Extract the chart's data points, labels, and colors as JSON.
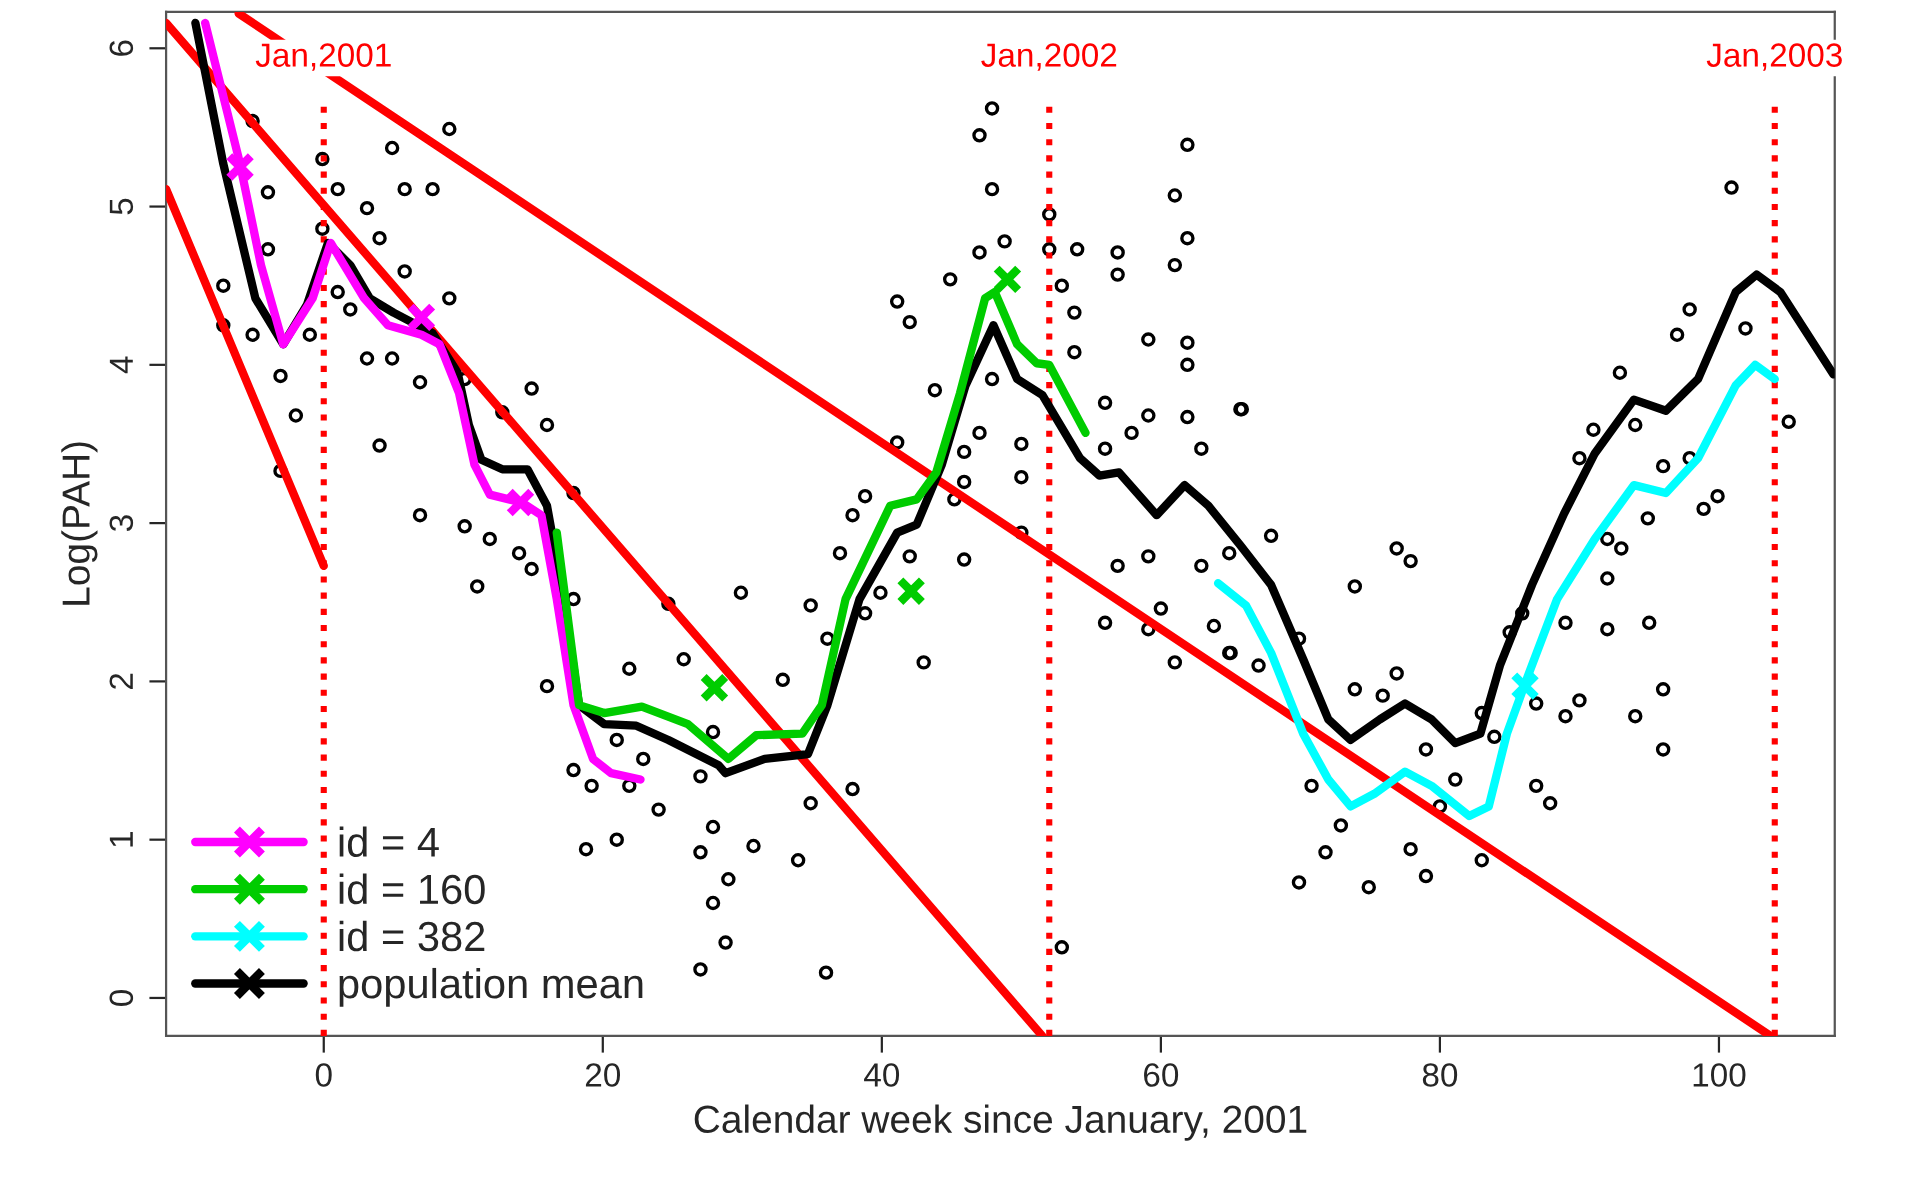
{
  "chart_data": {
    "type": "scatter",
    "xlabel": "Calendar week since January, 2001",
    "ylabel": "Log(PAH)",
    "xlim": [
      -11.3,
      108.3
    ],
    "ylim": [
      -0.24,
      6.23
    ],
    "xticks": [
      0,
      20,
      40,
      60,
      80,
      {
        "value": 100,
        "label": "100"
      }
    ],
    "yticks": [
      0,
      1,
      2,
      3,
      4,
      5,
      6
    ],
    "grid": false,
    "legend": "bottom left",
    "ref_lines": [
      {
        "axis": "x",
        "value": 0,
        "label": "Jan,2001",
        "color": "#ff0000",
        "line_style": "dotted"
      },
      {
        "axis": "x",
        "value": 52,
        "label": "Jan,2002",
        "color": "#ff0000",
        "line_style": "dotted"
      },
      {
        "axis": "x",
        "value": 104,
        "label": "Jan,2003",
        "color": "#ff0000",
        "line_style": "dotted"
      }
    ],
    "series": [
      {
        "color": "#000000",
        "marker": "circle",
        "x": [
          -5.1,
          -7.2,
          -7.2,
          -5.1,
          -4.0,
          -4.0,
          -3.1,
          -2.0,
          -3.1,
          -1.0,
          -0.1,
          -0.1,
          1.0,
          1.0,
          1.9,
          3.1,
          4.0,
          4.9,
          5.8,
          5.8,
          6.9,
          6.9,
          4.0,
          7.8,
          9.0,
          9.0,
          3.1,
          4.9,
          10.1,
          12.8,
          14.9,
          16.0,
          17.9,
          10.1,
          11.9,
          14.0,
          14.9,
          11.0,
          16.0,
          17.9,
          21.9,
          24.7,
          25.8,
          21.0,
          22.9,
          19.2,
          21.9,
          17.9,
          18.8,
          21.0,
          24.0,
          27.0,
          27.9,
          27.9,
          28.8,
          27.0,
          27.9,
          29.0,
          27.0,
          29.9,
          30.8,
          32.9,
          34.0,
          34.9,
          34.9,
          36.0,
          36.1,
          37.0,
          37.9,
          37.9,
          38.8,
          39.9,
          38.8,
          41.1,
          41.1,
          42.0,
          42.0,
          43.0,
          43.8,
          44.9,
          45.2,
          45.9,
          45.9,
          45.9,
          47.0,
          47.0,
          47.0,
          47.9,
          47.9,
          47.9,
          48.8,
          50.0,
          50.0,
          50.0,
          52.0,
          52.0,
          52.9,
          52.9,
          53.8,
          54.0,
          53.8,
          56.0,
          56.0,
          56.0,
          56.9,
          56.9,
          56.9,
          57.9,
          59.1,
          59.1,
          59.1,
          59.1,
          60.0,
          61.0,
          61.0,
          61.0,
          61.9,
          61.9,
          61.9,
          61.9,
          61.9,
          62.9,
          63.8,
          65.0,
          65.7,
          62.9,
          64.9,
          64.9,
          65.8,
          67.9,
          67.0,
          69.9,
          69.9,
          70.8,
          71.8,
          72.9,
          73.9,
          73.9,
          74.9,
          75.9,
          76.9,
          77.9,
          76.9,
          77.9,
          79.0,
          79.0,
          80.0,
          81.1,
          83.0,
          83.0,
          83.9,
          85.0,
          85.9,
          86.9,
          86.9,
          87.9,
          89.0,
          89.0,
          90.0,
          90.0,
          91.0,
          92.0,
          92.0,
          92.0,
          92.9,
          93.0,
          94.0,
          94.0,
          94.9,
          95.0,
          96.0,
          96.0,
          96.0,
          97.0,
          97.9,
          97.9,
          98.9,
          99.9,
          100.9,
          101.9,
          105.0
        ],
        "values": [
          5.54,
          4.5,
          4.25,
          4.19,
          5.09,
          4.73,
          3.93,
          3.68,
          3.33,
          4.19,
          5.3,
          4.86,
          5.11,
          4.46,
          4.35,
          4.99,
          4.8,
          5.37,
          5.11,
          4.59,
          3.89,
          3.05,
          3.49,
          5.11,
          5.49,
          4.42,
          4.04,
          4.04,
          3.91,
          3.7,
          3.85,
          3.62,
          3.19,
          2.98,
          2.9,
          2.81,
          2.71,
          2.6,
          1.97,
          2.52,
          2.08,
          2.49,
          2.14,
          1.63,
          1.51,
          1.34,
          1.34,
          1.44,
          0.94,
          1.0,
          1.19,
          1.4,
          1.08,
          0.6,
          0.35,
          0.18,
          1.68,
          0.75,
          0.92,
          2.56,
          0.96,
          2.01,
          0.87,
          2.48,
          1.23,
          0.16,
          2.27,
          2.81,
          3.05,
          1.32,
          2.43,
          2.56,
          3.17,
          3.51,
          4.4,
          4.27,
          2.79,
          2.12,
          3.84,
          4.54,
          3.15,
          3.45,
          3.26,
          2.77,
          5.45,
          4.71,
          3.57,
          5.62,
          5.11,
          3.91,
          4.78,
          3.5,
          3.29,
          2.94,
          4.95,
          4.73,
          0.32,
          4.5,
          4.33,
          4.73,
          4.08,
          3.76,
          3.47,
          2.37,
          4.71,
          4.57,
          2.73,
          3.57,
          4.16,
          3.68,
          2.79,
          2.33,
          2.46,
          5.07,
          4.63,
          2.12,
          5.39,
          4.8,
          4.14,
          4.0,
          3.67,
          3.47,
          2.35,
          2.18,
          3.72,
          2.73,
          2.81,
          2.18,
          3.72,
          2.92,
          2.1,
          2.27,
          0.73,
          1.34,
          0.92,
          1.09,
          2.6,
          1.95,
          0.7,
          1.91,
          2.84,
          2.76,
          2.05,
          0.94,
          0.77,
          1.57,
          1.21,
          1.38,
          1.8,
          0.87,
          1.65,
          2.31,
          2.43,
          1.86,
          1.34,
          1.23,
          1.78,
          2.37,
          3.41,
          1.88,
          3.59,
          2.9,
          2.65,
          2.33,
          3.95,
          2.84,
          3.62,
          1.78,
          3.03,
          2.37,
          3.36,
          1.95,
          1.57,
          4.19,
          4.35,
          3.41,
          3.09,
          3.17,
          5.12,
          4.23,
          3.64
        ]
      },
      {
        "type": "line",
        "color": "#ff0000",
        "x": [
          -11.3,
          0
        ],
        "values": [
          5.11,
          2.73
        ]
      },
      {
        "type": "line",
        "color": "#ff0000",
        "x": [
          -11.3,
          51.5
        ],
        "values": [
          6.16,
          -0.24
        ]
      },
      {
        "type": "line",
        "color": "#ff0000",
        "x": [
          -6.1,
          103.7
        ],
        "values": [
          6.22,
          -0.24
        ]
      },
      {
        "type": "line",
        "name": "population mean",
        "color": "#000000",
        "x": [
          -9.2,
          -7.2,
          -4.9,
          -2.9,
          -1.2,
          0.3,
          1.9,
          3.3,
          5.0,
          7.8,
          9.6,
          10.4,
          11.3,
          12.8,
          14.6,
          16.0,
          17.2,
          18.3,
          20.1,
          22.4,
          24.7,
          28.3,
          28.8,
          31.6,
          34.7,
          36.1,
          38.4,
          41.1,
          42.5,
          44.3,
          46.0,
          48.0,
          49.7,
          51.5,
          54.2,
          55.6,
          57.0,
          59.7,
          61.7,
          63.4,
          65.7,
          67.9,
          70.2,
          72.0,
          73.6,
          75.7,
          77.5,
          79.4,
          81.1,
          82.9,
          84.3,
          86.6,
          88.9,
          91.1,
          93.9,
          96.2,
          98.5,
          101.2,
          102.7,
          104.4,
          108.2
        ],
        "values": [
          6.16,
          5.27,
          4.42,
          4.13,
          4.38,
          4.77,
          4.63,
          4.42,
          4.33,
          4.2,
          3.95,
          3.62,
          3.4,
          3.34,
          3.34,
          3.11,
          2.52,
          1.85,
          1.73,
          1.72,
          1.63,
          1.47,
          1.42,
          1.51,
          1.54,
          1.85,
          2.52,
          2.94,
          2.99,
          3.37,
          3.87,
          4.25,
          3.91,
          3.81,
          3.41,
          3.3,
          3.32,
          3.05,
          3.24,
          3.11,
          2.86,
          2.61,
          2.14,
          1.76,
          1.63,
          1.76,
          1.86,
          1.76,
          1.61,
          1.67,
          2.1,
          2.61,
          3.06,
          3.44,
          3.78,
          3.71,
          3.91,
          4.46,
          4.57,
          4.46,
          3.94
        ]
      },
      {
        "type": "line",
        "name": "id = 4",
        "color": "#ff00ff",
        "x": [
          -8.5,
          -6.0,
          -4.5,
          -2.9,
          -0.8,
          0.5,
          2.9,
          4.6,
          7.0,
          8.3,
          9.7,
          10.8,
          11.9,
          14.2,
          15.6,
          16.7,
          17.9,
          19.3,
          20.6,
          22.7
        ],
        "values": [
          6.16,
          5.27,
          4.63,
          4.13,
          4.42,
          4.77,
          4.42,
          4.25,
          4.19,
          4.13,
          3.82,
          3.37,
          3.18,
          3.13,
          3.05,
          2.52,
          1.85,
          1.51,
          1.42,
          1.38
        ]
      },
      {
        "type": "line",
        "name": "id = 160",
        "color": "#00cc00",
        "x": [
          16.7,
          18.3,
          20.1,
          22.8,
          26.1,
          29.0,
          31.0,
          34.3,
          35.7,
          37.4,
          40.6,
          42.5,
          43.9,
          45.6,
          47.4,
          48.1,
          49.7,
          51.1,
          52.0,
          54.6
        ],
        "values": [
          2.94,
          1.85,
          1.8,
          1.84,
          1.73,
          1.51,
          1.66,
          1.67,
          1.85,
          2.52,
          3.11,
          3.15,
          3.32,
          3.82,
          4.42,
          4.46,
          4.13,
          4.01,
          4.0,
          3.57
        ]
      },
      {
        "type": "line",
        "name": "id = 382",
        "color": "#00ffff",
        "x": [
          64.1,
          66.1,
          67.9,
          70.2,
          72.0,
          73.6,
          75.3,
          77.5,
          79.4,
          82.1,
          83.5,
          84.8,
          86.2,
          88.4,
          91.1,
          93.9,
          96.2,
          98.5,
          101.2,
          102.6,
          104.0
        ],
        "values": [
          2.62,
          2.48,
          2.18,
          1.67,
          1.38,
          1.21,
          1.29,
          1.43,
          1.34,
          1.15,
          1.21,
          1.67,
          2.01,
          2.52,
          2.9,
          3.24,
          3.19,
          3.41,
          3.87,
          4.0,
          3.91
        ]
      },
      {
        "type": "scatter",
        "color": "#ff00ff",
        "marker": "cross",
        "x": [
          -6.0,
          7.0,
          14.1
        ],
        "values": [
          5.25,
          4.3,
          3.13
        ]
      },
      {
        "type": "scatter",
        "color": "#00cc00",
        "marker": "cross",
        "x": [
          28.0,
          42.1,
          49.0
        ],
        "values": [
          1.96,
          2.57,
          4.54
        ]
      },
      {
        "type": "scatter",
        "color": "#00ffff",
        "marker": "cross",
        "x": [
          86.1
        ],
        "values": [
          1.97
        ]
      }
    ]
  }
}
